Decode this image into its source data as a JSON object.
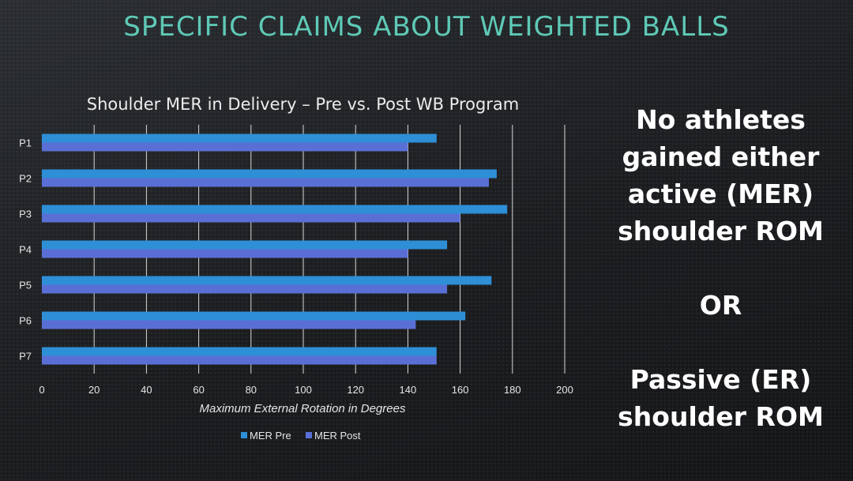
{
  "slide": {
    "title": "SPECIFIC CLAIMS ABOUT WEIGHTED BALLS",
    "title_color": "#5ec9b6"
  },
  "side_text": {
    "line1": "No athletes",
    "line2": "gained either",
    "line3": "active (MER)",
    "line4": "shoulder ROM",
    "line5": "OR",
    "line6": "Passive (ER)",
    "line7": "shoulder ROM"
  },
  "chart_data": {
    "type": "bar",
    "orientation": "horizontal",
    "title": "Shoulder MER in Delivery – Pre vs. Post WB Program",
    "xlabel": "Maximum External Rotation in Degrees",
    "ylabel": "",
    "categories": [
      "P1",
      "P2",
      "P3",
      "P4",
      "P5",
      "P6",
      "P7"
    ],
    "series": [
      {
        "name": "MER Pre",
        "color": "#2e8fd6",
        "values": [
          151,
          174,
          178,
          155,
          172,
          162,
          151
        ]
      },
      {
        "name": "MER Post",
        "color": "#5a6fd6",
        "values": [
          140,
          171,
          160,
          140,
          155,
          143,
          151
        ]
      }
    ],
    "xlim": [
      0,
      200
    ],
    "xticks": [
      0,
      20,
      40,
      60,
      80,
      100,
      120,
      140,
      160,
      180,
      200
    ],
    "grid": "vertical-major",
    "legend_position": "bottom"
  }
}
